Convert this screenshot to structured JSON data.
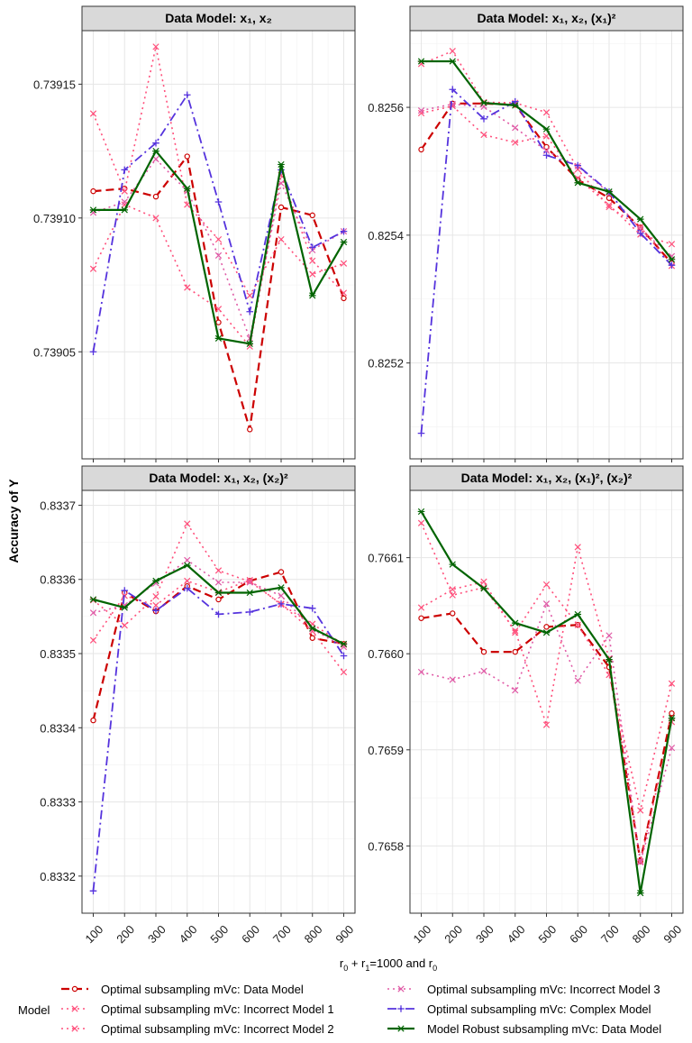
{
  "y_axis_title": "Accuracy of Y",
  "x_axis_title_parts": [
    "r",
    "0",
    " + r",
    "1",
    "=1000 and r",
    "0"
  ],
  "legend": {
    "title": "Model",
    "items": [
      {
        "label": "Optimal subsampling mVc: Data Model",
        "color": "#cc0000",
        "dash": "9,5",
        "marker": "circle",
        "width": 2.2
      },
      {
        "label": "Optimal subsampling mVc: Incorrect Model 1",
        "color": "#ff4f7b",
        "dash": "2,4",
        "marker": "x",
        "width": 1.6
      },
      {
        "label": "Optimal subsampling mVc: Incorrect Model 2",
        "color": "#ff4f7b",
        "dash": "2,4",
        "marker": "x",
        "width": 1.6
      },
      {
        "label": "Optimal subsampling mVc: Incorrect Model 3",
        "color": "#e05aa6",
        "dash": "2,4",
        "marker": "x",
        "width": 1.6
      },
      {
        "label": "Optimal subsampling mVc: Complex Model",
        "color": "#5533dd",
        "dash": "10,4,2,4",
        "marker": "plus",
        "width": 1.8
      },
      {
        "label": "Model Robust subsampling mVc: Data Model",
        "color": "#006400",
        "dash": "",
        "marker": "star",
        "width": 2.2
      }
    ]
  },
  "chart_data": [
    {
      "type": "line",
      "title": "Data Model: x₁, x₂",
      "x": [
        100,
        200,
        300,
        400,
        500,
        600,
        700,
        800,
        900
      ],
      "x_tick_labels": [
        "100",
        "200",
        "300",
        "400",
        "500",
        "600",
        "700",
        "800",
        "900"
      ],
      "ylim": [
        0.73901,
        0.73917
      ],
      "y_ticks": [
        0.73905,
        0.7391,
        0.73915
      ],
      "y_tick_labels": [
        "0.73905",
        "0.73910",
        "0.73915"
      ],
      "grid": true,
      "series": [
        {
          "name": "Optimal subsampling mVc: Data Model",
          "values": [
            0.73911,
            0.739111,
            0.739108,
            0.739123,
            0.739061,
            0.739021,
            0.739104,
            0.739101,
            0.73907
          ]
        },
        {
          "name": "Optimal subsampling mVc: Incorrect Model 1",
          "values": [
            0.739139,
            0.73911,
            0.739164,
            0.739105,
            0.739092,
            0.739071,
            0.739092,
            0.739079,
            0.739083
          ]
        },
        {
          "name": "Optimal subsampling mVc: Incorrect Model 2",
          "values": [
            0.739081,
            0.739105,
            0.7391,
            0.739074,
            0.739066,
            0.739052,
            0.739116,
            0.739084,
            0.739072
          ]
        },
        {
          "name": "Optimal subsampling mVc: Incorrect Model 3",
          "values": [
            0.739102,
            0.739106,
            0.739122,
            0.73911,
            0.739086,
            0.739055,
            0.739113,
            0.739088,
            0.739095
          ]
        },
        {
          "name": "Optimal subsampling mVc: Complex Model",
          "values": [
            0.73905,
            0.739118,
            0.739128,
            0.739146,
            0.739106,
            0.739065,
            0.739118,
            0.739089,
            0.739095
          ]
        },
        {
          "name": "Model Robust subsampling mVc: Data Model",
          "values": [
            0.739103,
            0.739103,
            0.739125,
            0.739111,
            0.739055,
            0.739053,
            0.73912,
            0.739071,
            0.739091
          ]
        }
      ]
    },
    {
      "type": "line",
      "title": "Data Model: x₁, x₂, (x₁)²",
      "x": [
        100,
        200,
        300,
        400,
        500,
        600,
        700,
        800,
        900
      ],
      "x_tick_labels": [
        "100",
        "200",
        "300",
        "400",
        "500",
        "600",
        "700",
        "800",
        "900"
      ],
      "ylim": [
        0.82505,
        0.82572
      ],
      "y_ticks": [
        0.8252,
        0.8254,
        0.8256
      ],
      "y_tick_labels": [
        "0.8252",
        "0.8254",
        "0.8256"
      ],
      "grid": true,
      "series": [
        {
          "name": "Optimal subsampling mVc: Data Model",
          "values": [
            0.825534,
            0.825606,
            0.825606,
            0.825604,
            0.825538,
            0.825487,
            0.825458,
            0.825412,
            0.825356
          ]
        },
        {
          "name": "Optimal subsampling mVc: Incorrect Model 1",
          "values": [
            0.825668,
            0.825688,
            0.825608,
            0.825607,
            0.825592,
            0.825503,
            0.825444,
            0.825413,
            0.825352
          ]
        },
        {
          "name": "Optimal subsampling mVc: Incorrect Model 2",
          "values": [
            0.825591,
            0.825602,
            0.825557,
            0.825545,
            0.825555,
            0.825489,
            0.825447,
            0.825401,
            0.825386
          ]
        },
        {
          "name": "Optimal subsampling mVc: Incorrect Model 3",
          "values": [
            0.825595,
            0.825605,
            0.825601,
            0.825568,
            0.825532,
            0.825508,
            0.825466,
            0.825409,
            0.825367
          ]
        },
        {
          "name": "Optimal subsampling mVc: Complex Model",
          "values": [
            0.82509,
            0.825628,
            0.825582,
            0.825609,
            0.825525,
            0.825509,
            0.825468,
            0.825403,
            0.825353
          ]
        },
        {
          "name": "Model Robust subsampling mVc: Data Model",
          "values": [
            0.825672,
            0.825672,
            0.825607,
            0.825603,
            0.825566,
            0.825482,
            0.825468,
            0.825425,
            0.825362
          ]
        }
      ]
    },
    {
      "type": "line",
      "title": "Data Model: x₁, x₂, (x₂)²",
      "x": [
        100,
        200,
        300,
        400,
        500,
        600,
        700,
        800,
        900
      ],
      "x_tick_labels": [
        "100",
        "200",
        "300",
        "400",
        "500",
        "600",
        "700",
        "800",
        "900"
      ],
      "ylim": [
        0.83315,
        0.83372
      ],
      "y_ticks": [
        0.8332,
        0.8333,
        0.8334,
        0.8335,
        0.8336,
        0.8337
      ],
      "y_tick_labels": [
        "0.8332",
        "0.8333",
        "0.8334",
        "0.8335",
        "0.8336",
        "0.8337"
      ],
      "grid": true,
      "series": [
        {
          "name": "Optimal subsampling mVc: Data Model",
          "values": [
            0.83341,
            0.833582,
            0.833557,
            0.833591,
            0.833573,
            0.833598,
            0.83361,
            0.833521,
            0.833513
          ]
        },
        {
          "name": "Optimal subsampling mVc: Incorrect Model 1",
          "values": [
            0.833572,
            0.833538,
            0.833577,
            0.833675,
            0.833612,
            0.833597,
            0.833567,
            0.83353,
            0.833475
          ]
        },
        {
          "name": "Optimal subsampling mVc: Incorrect Model 2",
          "values": [
            0.833518,
            0.833578,
            0.833565,
            0.833598,
            0.833583,
            0.833599,
            0.833566,
            0.83354,
            0.833512
          ]
        },
        {
          "name": "Optimal subsampling mVc: Incorrect Model 3",
          "values": [
            0.833555,
            0.833565,
            0.833595,
            0.833626,
            0.833596,
            0.833596,
            0.833578,
            0.833533,
            0.833509
          ]
        },
        {
          "name": "Optimal subsampling mVc: Complex Model",
          "values": [
            0.83318,
            0.833585,
            0.833558,
            0.833588,
            0.833553,
            0.833556,
            0.833567,
            0.833561,
            0.833497
          ]
        },
        {
          "name": "Model Robust subsampling mVc: Data Model",
          "values": [
            0.833573,
            0.833562,
            0.833598,
            0.833619,
            0.833582,
            0.833582,
            0.833589,
            0.833534,
            0.833513
          ]
        }
      ]
    },
    {
      "type": "line",
      "title": "Data Model: x₁, x₂, (x₁)², (x₂)²",
      "x": [
        100,
        200,
        300,
        400,
        500,
        600,
        700,
        800,
        900
      ],
      "x_tick_labels": [
        "100",
        "200",
        "300",
        "400",
        "500",
        "600",
        "700",
        "800",
        "900"
      ],
      "ylim": [
        0.76573,
        0.76617
      ],
      "y_ticks": [
        0.7658,
        0.7659,
        0.766,
        0.7661
      ],
      "y_tick_labels": [
        "0.7658",
        "0.7659",
        "0.7660",
        "0.7661"
      ],
      "grid": true,
      "series": [
        {
          "name": "Optimal subsampling mVc: Data Model",
          "values": [
            0.766037,
            0.766042,
            0.766002,
            0.766002,
            0.766028,
            0.76603,
            0.765986,
            0.765784,
            0.765938
          ]
        },
        {
          "name": "Optimal subsampling mVc: Incorrect Model 1",
          "values": [
            0.766136,
            0.766061,
            0.766069,
            0.766024,
            0.765926,
            0.766111,
            0.765995,
            0.765784,
            0.765929
          ]
        },
        {
          "name": "Optimal subsampling mVc: Incorrect Model 2",
          "values": [
            0.766048,
            0.766067,
            0.766075,
            0.766022,
            0.766072,
            0.76603,
            0.765978,
            0.765837,
            0.765969
          ]
        },
        {
          "name": "Optimal subsampling mVc: Incorrect Model 3",
          "values": [
            0.765981,
            0.765973,
            0.765982,
            0.765962,
            0.766052,
            0.765972,
            0.766019,
            0.765783,
            0.765902
          ]
        },
        {
          "name": "Model Robust subsampling mVc: Data Model",
          "values": [
            0.766148,
            0.766093,
            0.766068,
            0.766032,
            0.766022,
            0.766041,
            0.765994,
            0.765751,
            0.765933
          ]
        }
      ]
    }
  ]
}
